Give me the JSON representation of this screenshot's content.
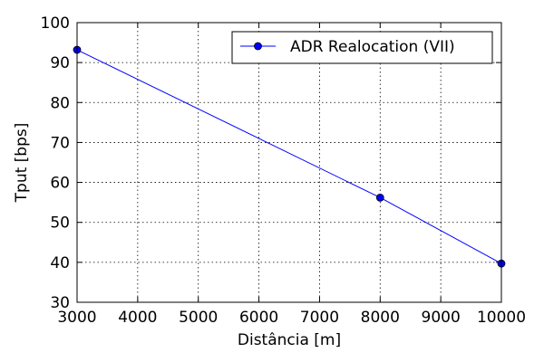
{
  "chart_data": {
    "type": "line",
    "xlabel": "Distância [m]",
    "ylabel": "Tput [bps]",
    "xlim": [
      3000,
      10000
    ],
    "ylim": [
      30,
      100
    ],
    "xticks": [
      3000,
      4000,
      5000,
      6000,
      7000,
      8000,
      9000,
      10000
    ],
    "yticks": [
      30,
      40,
      50,
      60,
      70,
      80,
      90,
      100
    ],
    "grid": true,
    "legend_position": "top-right",
    "series": [
      {
        "name": "ADR Realocation (VII)",
        "color": "#0000ff",
        "marker": "circle",
        "x": [
          3000,
          8000,
          10000
        ],
        "y": [
          93.2,
          56.2,
          39.7
        ]
      }
    ]
  }
}
